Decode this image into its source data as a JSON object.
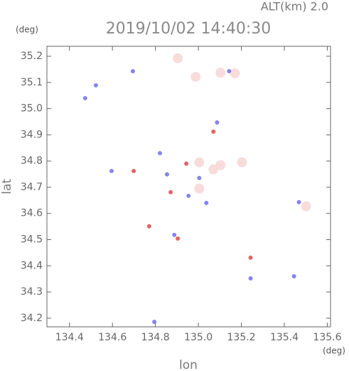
{
  "chart_data": {
    "type": "scatter",
    "title": "2019/10/02 14:40:30",
    "subtitle": "ALT(km) 2.0",
    "x_label": "lon",
    "y_label": "lat",
    "x_unit": "(deg)",
    "y_unit": "(deg)",
    "xlim": [
      134.295,
      135.615
    ],
    "ylim": [
      34.167,
      35.238
    ],
    "xticks": [
      134.4,
      134.6,
      134.8,
      {
        "value": 135.0,
        "label": "135.0"
      },
      135.2,
      135.4,
      135.6
    ],
    "yticks": [
      34.2,
      34.3,
      34.4,
      34.5,
      34.6,
      34.7,
      34.8,
      34.9,
      {
        "value": 35.0,
        "label": "35.0"
      },
      35.1,
      35.2
    ],
    "series": [
      {
        "color": "#f7d6d6",
        "x": [
          134.987,
          135.103,
          135.17,
          135.004,
          135.103,
          135.203,
          135.07,
          135.501,
          134.904,
          135.004
        ],
        "y": [
          35.121,
          35.137,
          35.135,
          34.795,
          34.784,
          34.795,
          34.768,
          34.627,
          35.192,
          34.695
        ]
      },
      {
        "color": "#6f6ff0",
        "x": [
          134.473,
          134.523,
          134.695,
          134.596,
          134.821,
          134.854,
          134.954,
          134.888,
          135.087,
          135.243,
          134.795,
          135.468,
          135.445,
          135.143,
          135.037,
          135.004
        ],
        "y": [
          35.04,
          35.089,
          35.143,
          34.762,
          34.83,
          34.749,
          34.667,
          34.518,
          34.947,
          34.352,
          34.186,
          34.643,
          34.36,
          35.143,
          34.64,
          34.735
        ]
      },
      {
        "color": "#e04848",
        "x": [
          134.771,
          134.904,
          134.871,
          134.699,
          134.944,
          135.07,
          135.243
        ],
        "y": [
          34.551,
          34.504,
          34.681,
          34.762,
          34.79,
          34.912,
          34.431
        ]
      }
    ]
  }
}
